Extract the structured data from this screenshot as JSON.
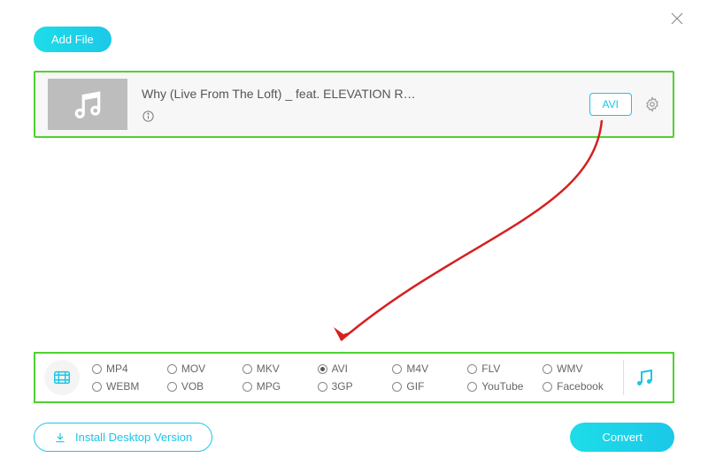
{
  "window": {
    "close_icon": "close"
  },
  "toolbar": {
    "add_file_label": "Add File"
  },
  "file": {
    "title": "Why (Live From The Loft) _ feat. ELEVATION R…",
    "format_label": "AVI"
  },
  "formats": {
    "row1": [
      "MP4",
      "MOV",
      "MKV",
      "AVI",
      "M4V",
      "FLV",
      "WMV"
    ],
    "row2": [
      "WEBM",
      "VOB",
      "MPG",
      "3GP",
      "GIF",
      "YouTube",
      "Facebook"
    ],
    "selected": "AVI"
  },
  "footer": {
    "install_label": "Install Desktop Version",
    "convert_label": "Convert"
  },
  "colors": {
    "accent": "#1ac6e8",
    "highlight_border": "#4fd12f",
    "arrow": "#d62020",
    "thumb_bg": "#bdbdbd",
    "panel_bg": "#f7f7f7",
    "text_muted": "#666"
  }
}
